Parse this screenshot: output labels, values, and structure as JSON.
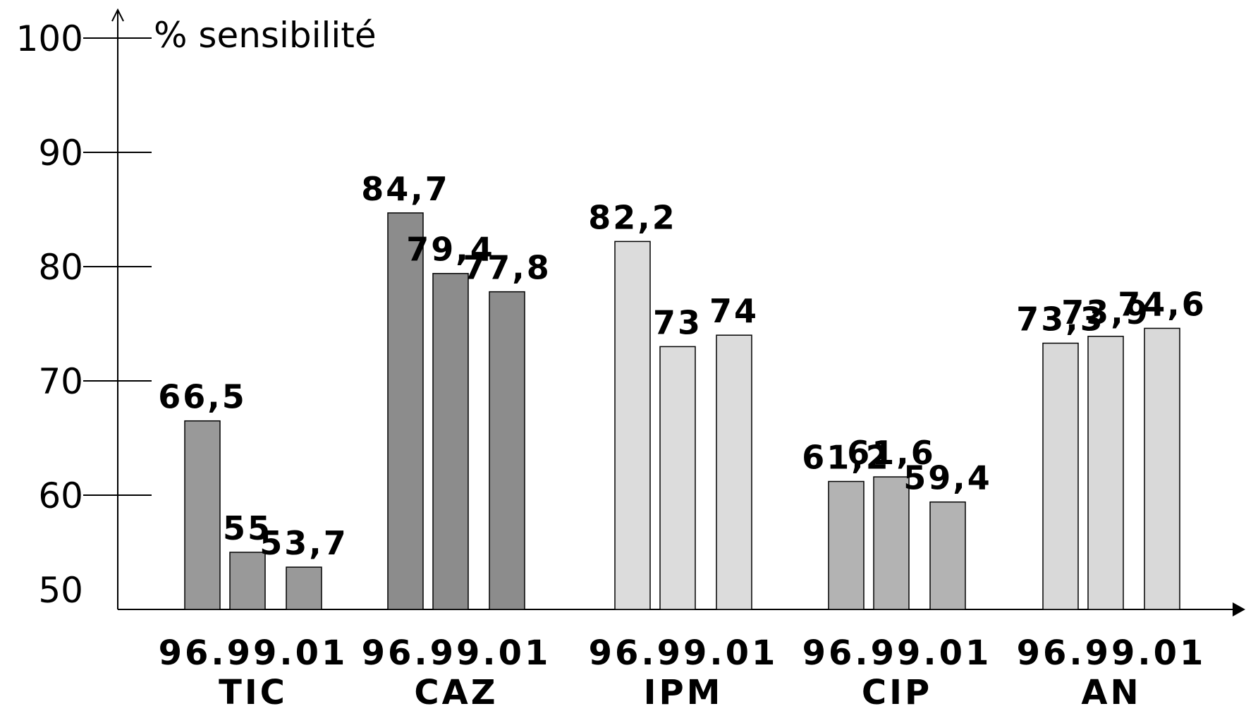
{
  "chart_data": {
    "type": "bar",
    "ylabel": "% sensibilité",
    "ylim": [
      50,
      100
    ],
    "yticks": [
      "50",
      "60",
      "70",
      "80",
      "90",
      "100"
    ],
    "groups": [
      {
        "name": "TIC",
        "years": "96.99.01",
        "values": [
          66.5,
          55,
          53.7
        ],
        "labels": [
          "66,5",
          "55",
          "53,7"
        ],
        "color": "#999999"
      },
      {
        "name": "CAZ",
        "years": "96.99.01",
        "values": [
          84.7,
          79.4,
          77.8
        ],
        "labels": [
          "84,7",
          "79,4",
          "77,8"
        ],
        "color": "#8c8c8c"
      },
      {
        "name": "IPM",
        "years": "96.99.01",
        "values": [
          82.2,
          73,
          74
        ],
        "labels": [
          "82,2",
          "73",
          "74"
        ],
        "color": "#dcdcdc"
      },
      {
        "name": "CIP",
        "years": "96.99.01",
        "values": [
          61.2,
          61.6,
          59.4
        ],
        "labels": [
          "61,2",
          "61,6",
          "59,4"
        ],
        "color": "#b3b3b3"
      },
      {
        "name": "AN",
        "years": "96.99.01",
        "values": [
          73.3,
          73.9,
          74.6
        ],
        "labels": [
          "73,3",
          "73,9",
          "74,6"
        ],
        "color": "#d9d9d9"
      }
    ]
  }
}
